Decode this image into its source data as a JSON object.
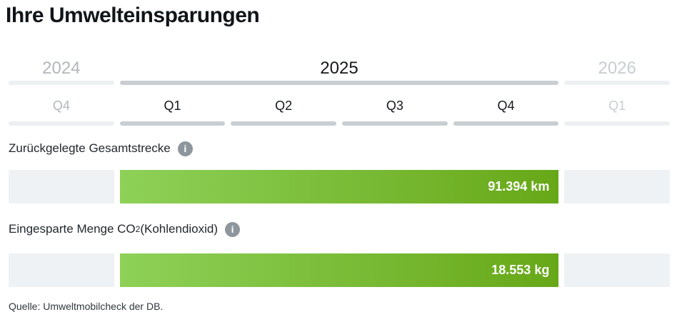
{
  "header": {
    "title": "Ihre Umwelteinsparungen"
  },
  "timeline": {
    "years": [
      {
        "label": "2024",
        "state": "past"
      },
      {
        "label": "2025",
        "state": "selected"
      },
      {
        "label": "2026",
        "state": "future"
      }
    ],
    "quarters": [
      {
        "label": "Q4",
        "state": "past"
      },
      {
        "label": "Q1",
        "state": "selected"
      },
      {
        "label": "Q2",
        "state": "selected"
      },
      {
        "label": "Q3",
        "state": "selected"
      },
      {
        "label": "Q4",
        "state": "selected"
      },
      {
        "label": "Q1",
        "state": "future"
      }
    ]
  },
  "metrics": [
    {
      "label": "Zurückgelegte Gesamtstrecke",
      "label_sub": "",
      "label_suffix": "",
      "value_display": "91.394 km"
    },
    {
      "label": "Eingesparte Menge CO",
      "label_sub": "2",
      "label_suffix": " (Kohlendioxid)",
      "value_display": "18.553 kg"
    }
  ],
  "icons": {
    "info_glyph": "i"
  },
  "footer": {
    "source": "Quelle: Umweltmobilcheck der DB."
  },
  "colors": {
    "bar_gradient_start": "#8ed158",
    "bar_gradient_end": "#67a818",
    "placeholder_block": "#eef2f5",
    "active_underline": "#c9ced3",
    "inactive_underline": "#edf0f2",
    "past_text": "#b2b7bc",
    "future_text": "#c8cdd1",
    "info_icon_bg": "#8e969d"
  },
  "chart_data": {
    "type": "bar",
    "orientation": "horizontal",
    "title": "Ihre Umwelteinsparungen",
    "selected_year": "2025",
    "year_tabs": [
      "2024",
      "2025",
      "2026"
    ],
    "quarter_tabs": [
      "Q4",
      "Q1",
      "Q2",
      "Q3",
      "Q4",
      "Q1"
    ],
    "categories": [
      "Zurückgelegte Gesamtstrecke",
      "Eingesparte Menge CO2 (Kohlendioxid)"
    ],
    "values": [
      91394,
      18553
    ],
    "value_labels": [
      "91.394 km",
      "18.553 kg"
    ],
    "units": [
      "km",
      "kg"
    ],
    "bar_colors": [
      "#8ed158",
      "#67a818"
    ],
    "legend": false,
    "source": "Quelle: Umweltmobilcheck der DB."
  }
}
